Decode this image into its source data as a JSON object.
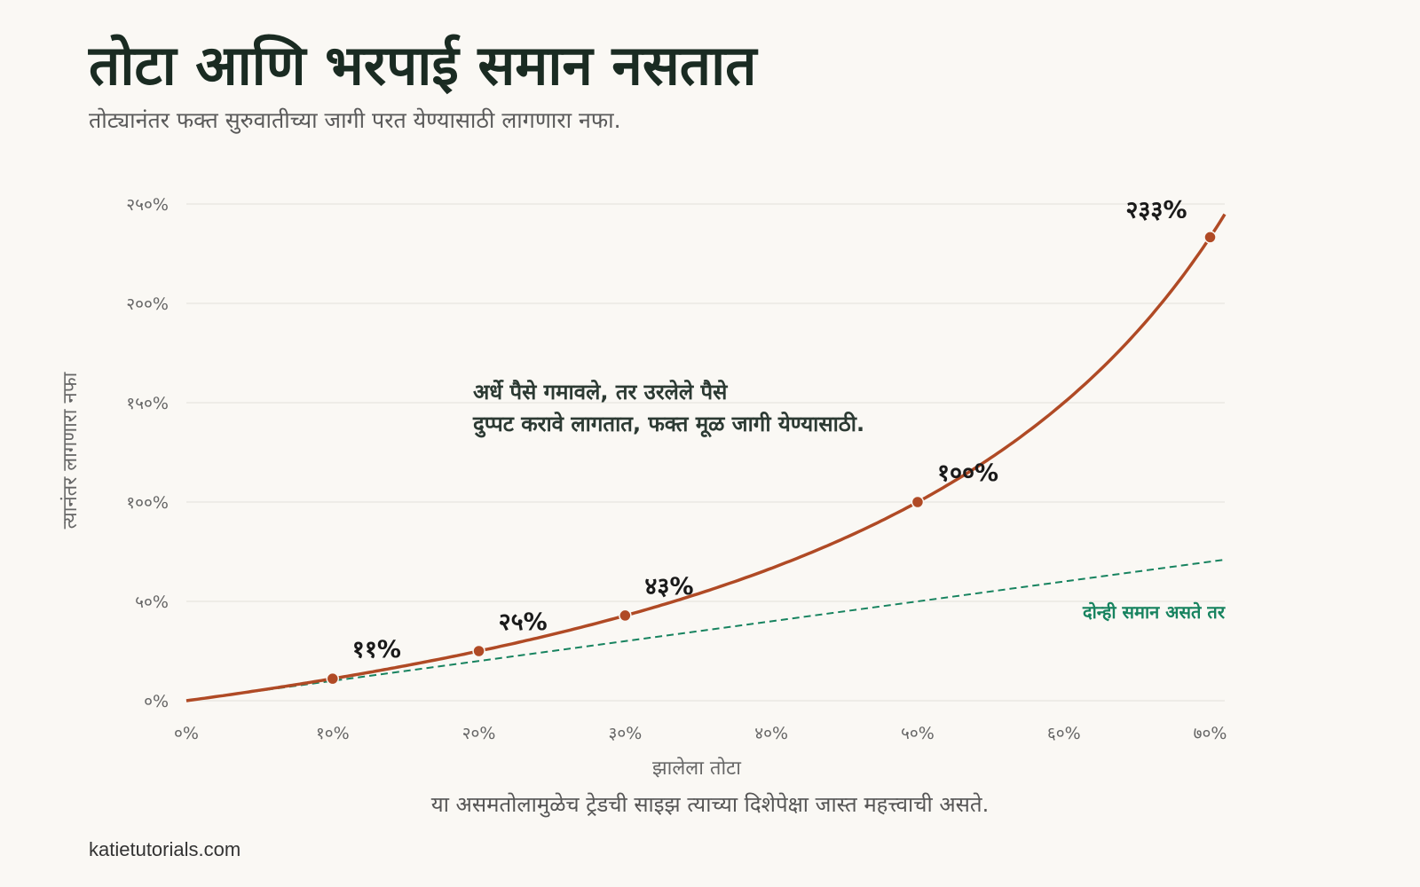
{
  "header": {
    "title": "तोटा आणि भरपाई समान नसतात",
    "subtitle": "तोट्यानंतर फक्त सुरुवातीच्या जागी परत येण्यासाठी लागणारा नफा."
  },
  "footer": {
    "caption": "या असमतोलामुळेच ट्रेडची साइझ त्याच्या दिशेपेक्षा जास्त महत्त्वाची असते.",
    "source": "katietutorials.com"
  },
  "chart_data": {
    "type": "line",
    "xlabel": "झालेला तोटा",
    "ylabel": "त्यानंतर लागणारा नफा",
    "xlim": [
      0,
      71
    ],
    "ylim": [
      0,
      250
    ],
    "x_ticks": [
      {
        "value": 0,
        "label": "०%"
      },
      {
        "value": 10,
        "label": "१०%"
      },
      {
        "value": 20,
        "label": "२०%"
      },
      {
        "value": 30,
        "label": "३०%"
      },
      {
        "value": 40,
        "label": "४०%"
      },
      {
        "value": 50,
        "label": "५०%"
      },
      {
        "value": 60,
        "label": "६०%"
      },
      {
        "value": 70,
        "label": "७०%"
      }
    ],
    "y_ticks": [
      {
        "value": 0,
        "label": "०%"
      },
      {
        "value": 50,
        "label": "५०%"
      },
      {
        "value": 100,
        "label": "१००%"
      },
      {
        "value": 150,
        "label": "१५०%"
      },
      {
        "value": 200,
        "label": "२००%"
      },
      {
        "value": 250,
        "label": "२५०%"
      }
    ],
    "grid": true,
    "series": [
      {
        "type": "curve",
        "color": "#b04a25"
      },
      {
        "name": "दोन्ही समान असते तर",
        "type": "dashed-line",
        "color": "#17835f"
      }
    ],
    "highlight_points": [
      {
        "x": 10,
        "y": 11.1,
        "label": "११%"
      },
      {
        "x": 20,
        "y": 25,
        "label": "२५%"
      },
      {
        "x": 30,
        "y": 42.9,
        "label": "४३%"
      },
      {
        "x": 50,
        "y": 100,
        "label": "१००%"
      },
      {
        "x": 70,
        "y": 233.3,
        "label": "२३३%"
      }
    ],
    "annotation": {
      "line1": "अर्धे पैसे गमावले, तर उरलेले पैसे",
      "line2": "दुप्पट करावे लागतात, फक्त मूळ जागी येण्यासाठी."
    }
  }
}
